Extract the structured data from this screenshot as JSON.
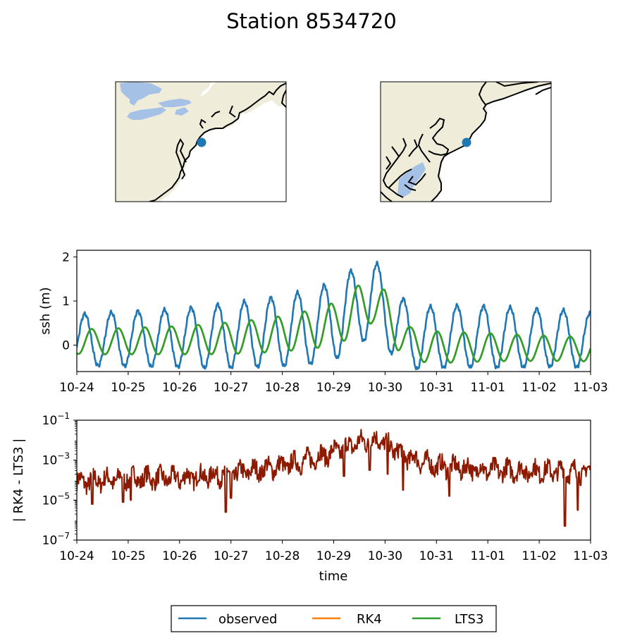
{
  "title": "Station 8534720",
  "colors": {
    "land": "#efedda",
    "lakes": "#a6c1e6",
    "coast": "#000000",
    "station_marker": "#1f77b4",
    "background": "#ffffff"
  },
  "maps": [
    {
      "extent": "regional",
      "marker": "station-marker"
    },
    {
      "extent": "local",
      "marker": "station-marker"
    }
  ],
  "x_ticks": [
    "10-24",
    "10-25",
    "10-26",
    "10-27",
    "10-28",
    "10-29",
    "10-30",
    "10-31",
    "11-01",
    "11-02",
    "11-03"
  ],
  "legend": [
    "observed",
    "RK4",
    "LTS3"
  ],
  "chart_data": [
    {
      "type": "line",
      "ylabel": "ssh (m)",
      "xlabel": "",
      "x_range": [
        "10-24",
        "11-03"
      ],
      "ylim": [
        -0.6,
        2.15
      ],
      "yticks": [
        "0",
        "1",
        "2"
      ],
      "ytick_values": [
        0,
        1,
        2
      ],
      "grid": false,
      "tidal_period_days": 0.5175,
      "x_days": [
        0,
        0.5,
        1,
        1.5,
        2,
        2.5,
        3,
        3.5,
        4,
        4.5,
        5,
        5.25,
        5.5,
        5.75,
        6,
        6.25,
        6.5,
        7,
        7.5,
        8,
        8.5,
        9,
        9.5,
        10
      ],
      "series": [
        {
          "name": "observed",
          "color": "#1f77b4",
          "amplitude": [
            0.58,
            0.6,
            0.62,
            0.64,
            0.66,
            0.7,
            0.74,
            0.76,
            0.8,
            0.84,
            0.88,
            0.9,
            0.9,
            0.88,
            0.86,
            0.8,
            0.7,
            0.7,
            0.7,
            0.7,
            0.68,
            0.66,
            0.64,
            0.62
          ],
          "mean": [
            0.12,
            0.13,
            0.14,
            0.15,
            0.16,
            0.18,
            0.22,
            0.26,
            0.32,
            0.4,
            0.55,
            0.7,
            0.95,
            1.05,
            0.85,
            0.4,
            0.15,
            0.18,
            0.2,
            0.18,
            0.17,
            0.16,
            0.15,
            0.1
          ]
        },
        {
          "name": "RK4",
          "color": "#ff7f0e",
          "amplitude": [
            0.28,
            0.29,
            0.3,
            0.31,
            0.32,
            0.34,
            0.36,
            0.38,
            0.4,
            0.44,
            0.48,
            0.5,
            0.5,
            0.48,
            0.46,
            0.42,
            0.38,
            0.36,
            0.34,
            0.32,
            0.3,
            0.29,
            0.28,
            0.27
          ],
          "mean": [
            0.08,
            0.08,
            0.09,
            0.1,
            0.11,
            0.13,
            0.16,
            0.2,
            0.26,
            0.34,
            0.48,
            0.62,
            0.88,
            0.98,
            0.78,
            0.3,
            0.02,
            -0.05,
            -0.05,
            -0.05,
            -0.06,
            -0.07,
            -0.08,
            -0.1
          ]
        },
        {
          "name": "LTS3",
          "color": "#2ca02c",
          "amplitude": [
            0.28,
            0.29,
            0.3,
            0.31,
            0.32,
            0.34,
            0.36,
            0.38,
            0.4,
            0.44,
            0.48,
            0.5,
            0.5,
            0.48,
            0.46,
            0.42,
            0.38,
            0.36,
            0.34,
            0.32,
            0.3,
            0.29,
            0.28,
            0.27
          ],
          "mean": [
            0.08,
            0.08,
            0.09,
            0.1,
            0.11,
            0.13,
            0.16,
            0.2,
            0.26,
            0.34,
            0.48,
            0.62,
            0.88,
            0.98,
            0.78,
            0.3,
            0.02,
            -0.05,
            -0.05,
            -0.05,
            -0.06,
            -0.07,
            -0.08,
            -0.1
          ]
        }
      ]
    },
    {
      "type": "line",
      "ylabel": "| RK4 - LTS3 |",
      "xlabel": "time",
      "x_range": [
        "10-24",
        "11-03"
      ],
      "yscale": "log",
      "ylim_exponent": [
        -7,
        -1
      ],
      "yticks": [
        {
          "base": "10",
          "exp": "−1",
          "value_exponent": -1
        },
        {
          "base": "10",
          "exp": "−3",
          "value_exponent": -3
        },
        {
          "base": "10",
          "exp": "−5",
          "value_exponent": -5
        },
        {
          "base": "10",
          "exp": "−7",
          "value_exponent": -7
        }
      ],
      "grid": false,
      "color": "#8b1a00",
      "x_days": [
        0,
        1,
        2,
        3,
        4,
        4.5,
        5,
        5.3,
        5.6,
        5.9,
        6,
        6.5,
        7,
        8,
        9,
        10
      ],
      "log10_envelope": [
        -4.1,
        -3.9,
        -3.9,
        -3.7,
        -3.3,
        -3.0,
        -2.6,
        -2.3,
        -2.05,
        -1.95,
        -2.2,
        -2.9,
        -3.3,
        -3.5,
        -3.55,
        -3.6
      ],
      "dips_x_days": [
        0.3,
        0.9,
        1.05,
        2.9,
        3.0,
        5.2,
        5.7,
        6.05,
        6.35,
        7.25,
        9.5,
        9.75
      ],
      "dips_log10": [
        -5.2,
        -5.1,
        -5.0,
        -5.6,
        -4.9,
        -3.8,
        -3.5,
        -3.7,
        -4.5,
        -4.8,
        -6.3,
        -5.5
      ]
    }
  ]
}
